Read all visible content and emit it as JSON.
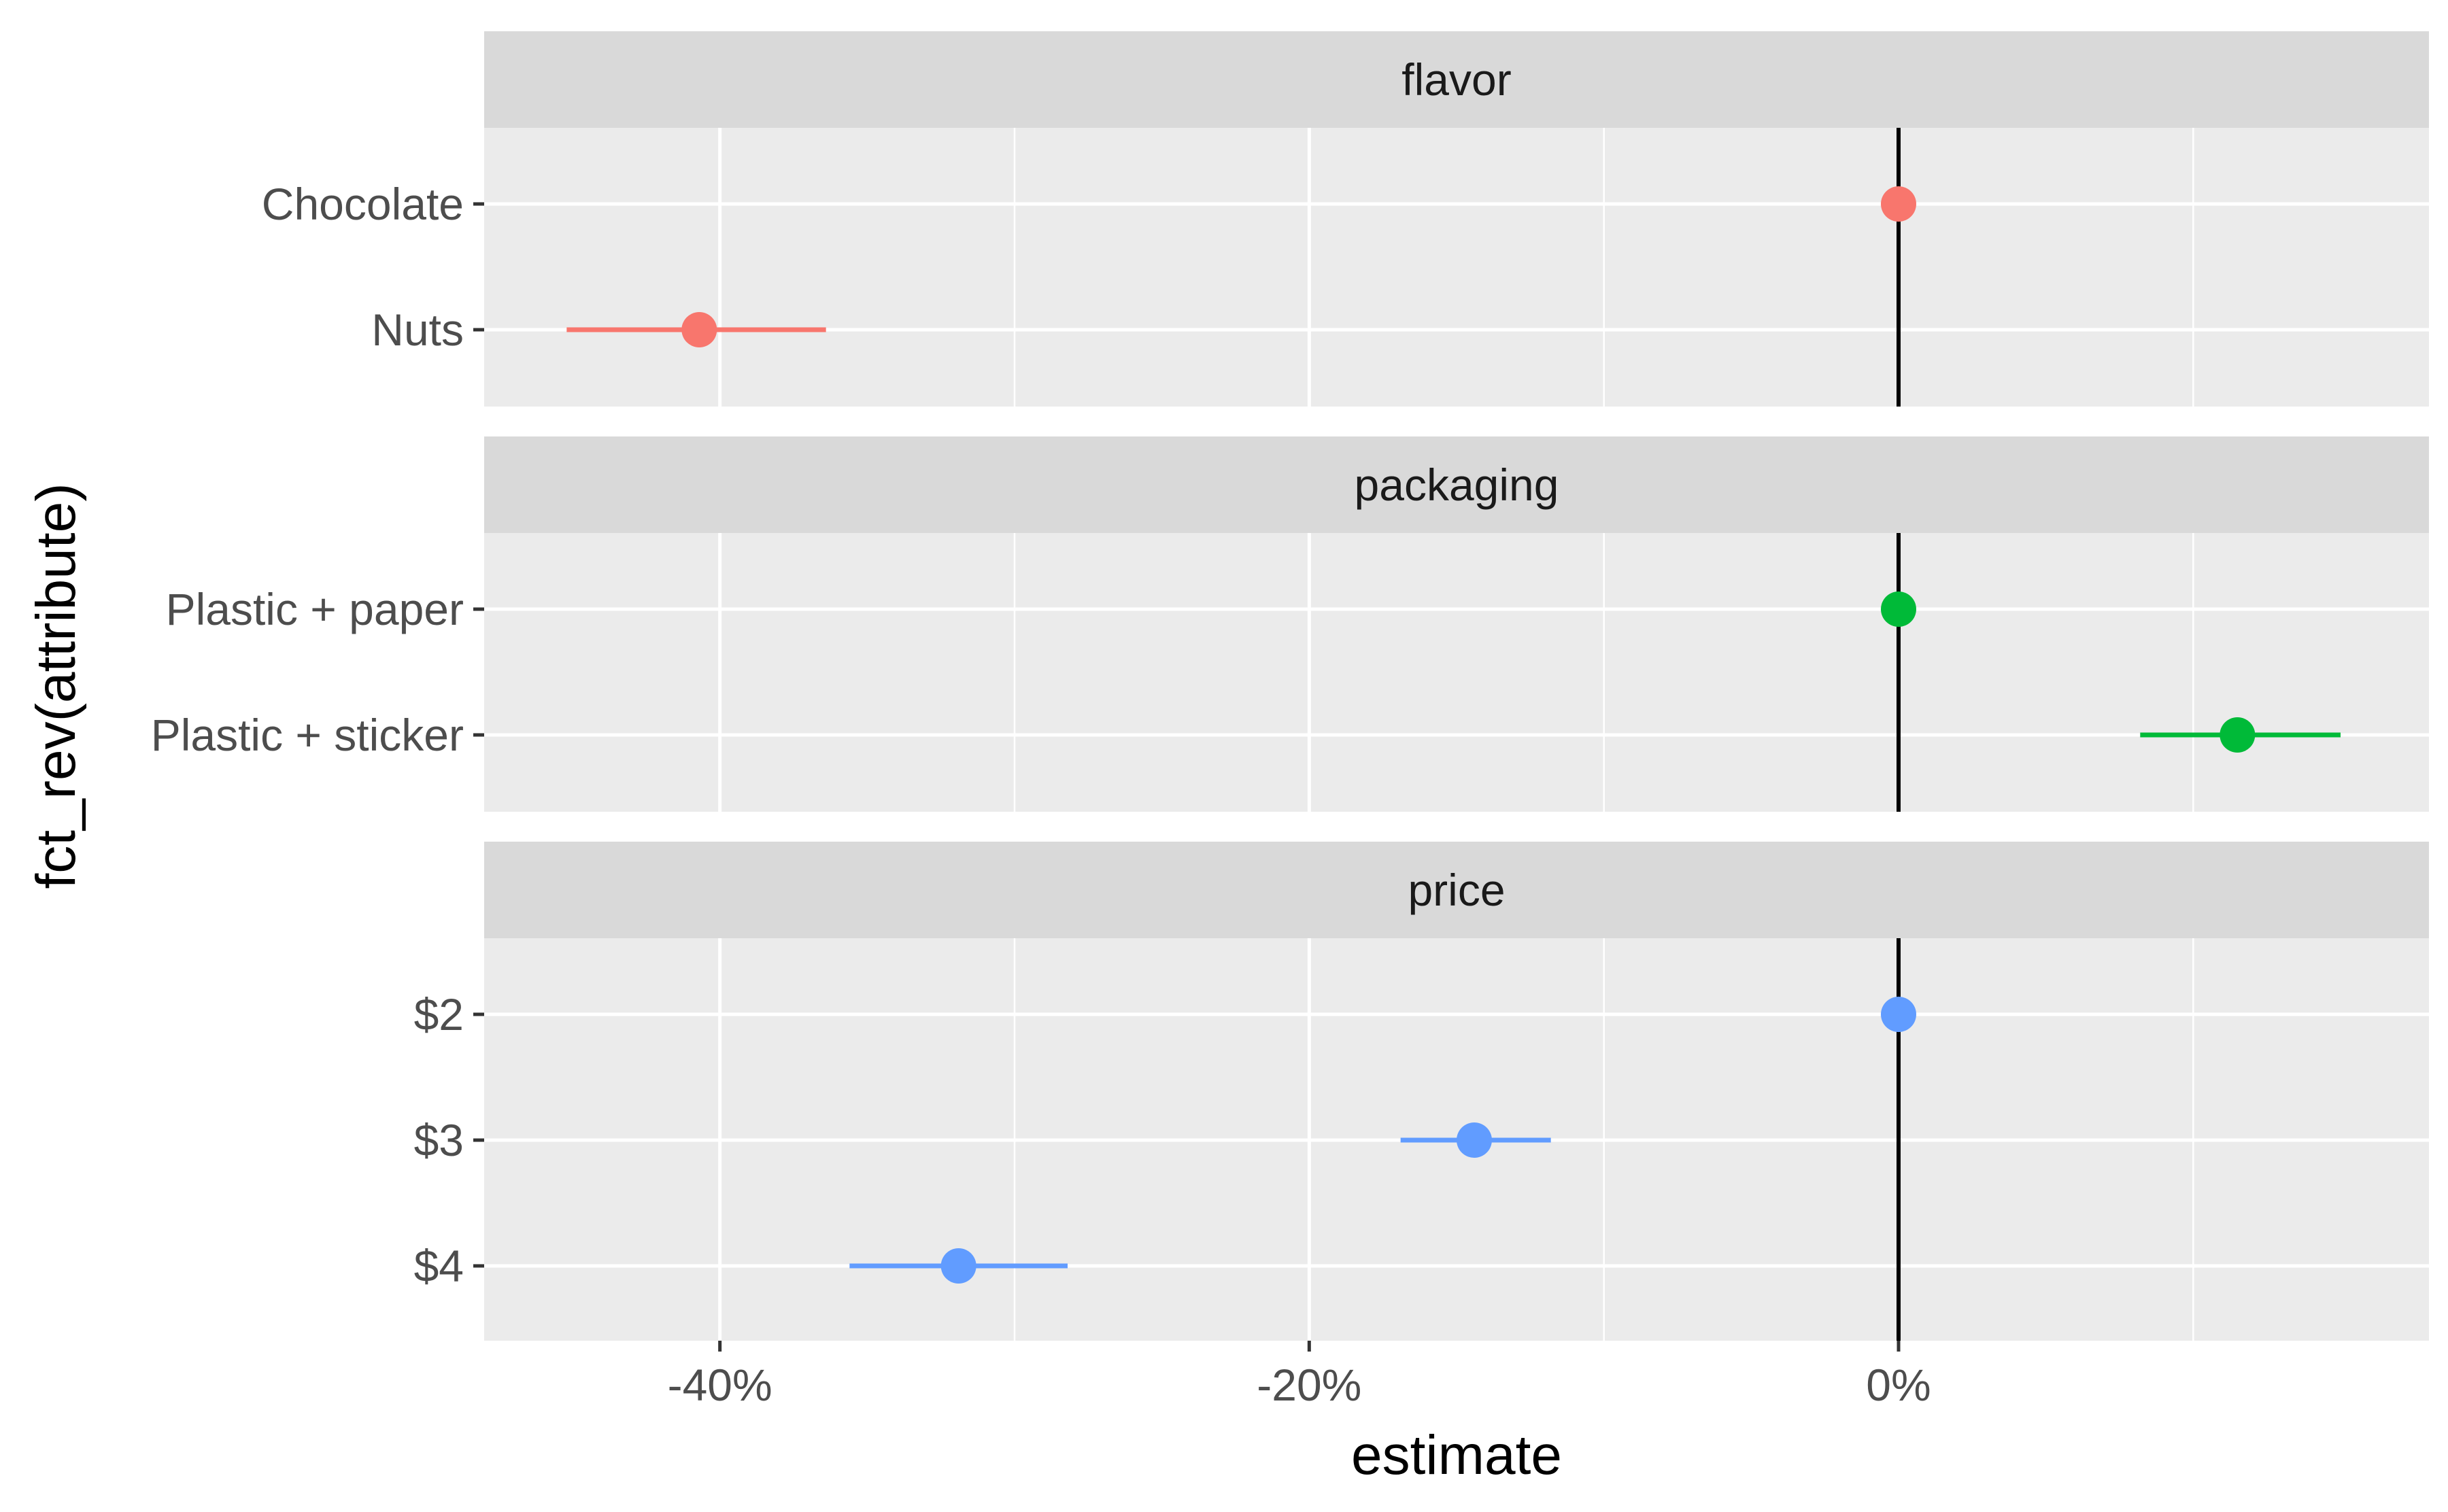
{
  "chart_data": {
    "type": "scatter",
    "subtype": "faceted point-range (coefficient) plot",
    "xlabel": "estimate",
    "ylabel": "fct_rev(attribute)",
    "xlim": [
      -0.48,
      0.18
    ],
    "x_ticks": [
      {
        "value": -0.4,
        "label": "-40%"
      },
      {
        "value": -0.2,
        "label": "-20%"
      },
      {
        "value": 0.0,
        "label": "0%"
      }
    ],
    "x_minor_ticks": [
      -0.3,
      -0.1,
      0.1
    ],
    "reference_line_x": 0,
    "grid": true,
    "legend": "none",
    "facets": [
      {
        "name": "flavor",
        "color": "#F8766D",
        "levels": [
          {
            "label": "Chocolate",
            "estimate": 0.0,
            "low": 0.0,
            "high": 0.0
          },
          {
            "label": "Nuts",
            "estimate": -0.407,
            "low": -0.452,
            "high": -0.364
          }
        ]
      },
      {
        "name": "packaging",
        "color": "#00BA38",
        "levels": [
          {
            "label": "Plastic + paper",
            "estimate": 0.0,
            "low": 0.0,
            "high": 0.0
          },
          {
            "label": "Plastic + sticker",
            "estimate": 0.115,
            "low": 0.082,
            "high": 0.15
          }
        ]
      },
      {
        "name": "price",
        "color": "#619CFF",
        "levels": [
          {
            "label": "$2",
            "estimate": 0.0,
            "low": 0.0,
            "high": 0.0
          },
          {
            "label": "$3",
            "estimate": -0.144,
            "low": -0.169,
            "high": -0.118
          },
          {
            "label": "$4",
            "estimate": -0.319,
            "low": -0.356,
            "high": -0.282
          }
        ]
      }
    ]
  }
}
